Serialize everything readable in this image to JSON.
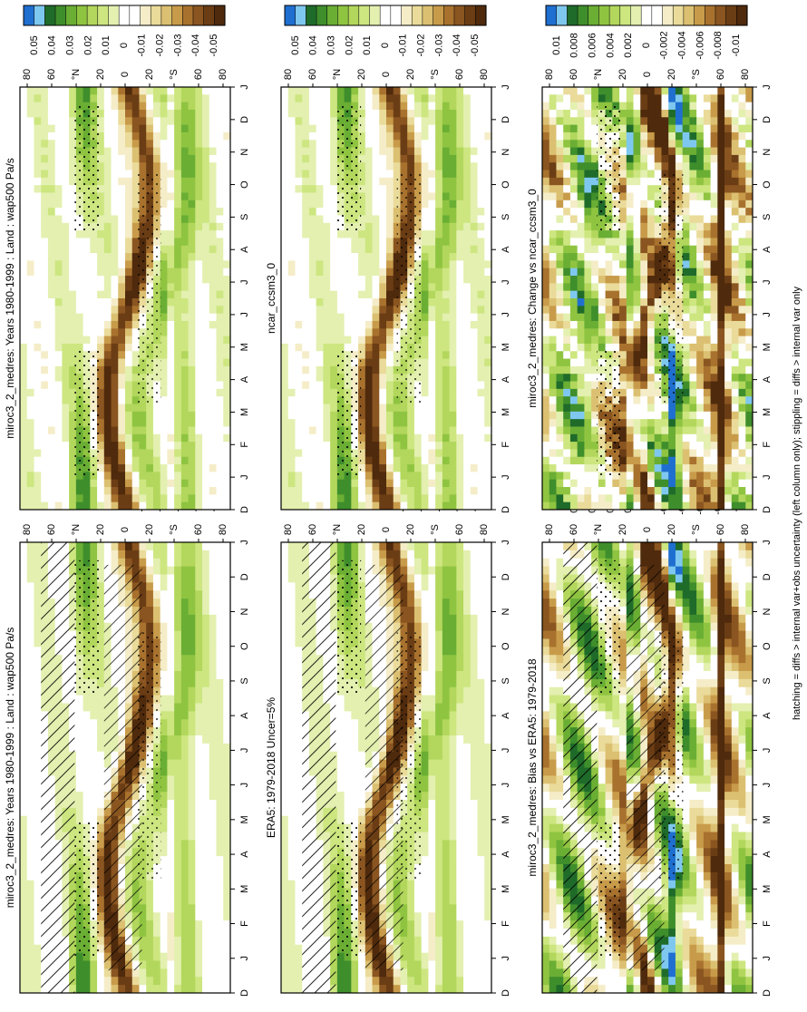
{
  "footnote": "hatching = diffs > internal var+obs uncertainty (left column only); stippling = diffs > internal var only",
  "months": [
    "D",
    "J",
    "F",
    "M",
    "A",
    "M",
    "J",
    "J",
    "A",
    "S",
    "O",
    "N",
    "D",
    "J"
  ],
  "lat_ticks": [
    "80",
    "60",
    "°N",
    "20",
    "0",
    "20",
    "°S",
    "60",
    "80"
  ],
  "palette": [
    "#1f6fd0",
    "#7ec8f0",
    "#1f6b2a",
    "#3f8e2c",
    "#6aae34",
    "#8fc441",
    "#b2d75c",
    "#cde680",
    "#e3f0b0",
    "#ffffff",
    "#ffffff",
    "#f5edc8",
    "#eadb9a",
    "#dcc071",
    "#c89b4a",
    "#a8722e",
    "#8a5520",
    "#6b3d15",
    "#4f2a0c"
  ],
  "colorbar_labels_main": [
    "0.05",
    "0.04",
    "0.03",
    "0.02",
    "0.01",
    "0",
    "-0.01",
    "-0.02",
    "-0.03",
    "-0.04",
    "-0.05"
  ],
  "colorbar_labels_diff": [
    "0.01",
    "0.008",
    "0.006",
    "0.004",
    "0.002",
    "0",
    "-0.002",
    "-0.004",
    "-0.006",
    "-0.008",
    "-0.01"
  ],
  "chart_data": [
    {
      "type": "heatmap",
      "title": "miroc3_2_medres: Years 1980-1999 : Land : wap500 Pa/s",
      "x_ticks": [
        "D",
        "J",
        "F",
        "M",
        "A",
        "M",
        "J",
        "J",
        "A",
        "S",
        "O",
        "N",
        "D",
        "J"
      ],
      "y_ticks": [
        "80",
        "60",
        "°N",
        "20",
        "0",
        "20",
        "°S",
        "60",
        "80"
      ],
      "colorbar": [
        "0.05",
        "0.04",
        "0.03",
        "0.02",
        "0.01",
        "0",
        "-0.01",
        "-0.02",
        "-0.03",
        "-0.04",
        "-0.05"
      ],
      "hatching": true
    },
    {
      "type": "heatmap",
      "title": "miroc3_2_medres: Years 1980-1999 : Land : wap500 Pa/s",
      "x_ticks": [
        "D",
        "J",
        "F",
        "M",
        "A",
        "M",
        "J",
        "J",
        "A",
        "S",
        "O",
        "N",
        "D",
        "J"
      ],
      "y_ticks": [
        "80",
        "60",
        "°N",
        "20",
        "0",
        "20",
        "°S",
        "60",
        "80"
      ],
      "colorbar": [
        "0.05",
        "0.04",
        "0.03",
        "0.02",
        "0.01",
        "0",
        "-0.01",
        "-0.02",
        "-0.03",
        "-0.04",
        "-0.05"
      ],
      "hatching": false
    },
    {
      "type": "heatmap",
      "title": "ERA5: 1979-2018 Uncer=5%",
      "x_ticks": [
        "D",
        "J",
        "F",
        "M",
        "A",
        "M",
        "J",
        "J",
        "A",
        "S",
        "O",
        "N",
        "D",
        "J"
      ],
      "y_ticks": [
        "80",
        "60",
        "°N",
        "20",
        "0",
        "20",
        "°S",
        "60",
        "80"
      ],
      "colorbar": [
        "0.05",
        "0.04",
        "0.03",
        "0.02",
        "0.01",
        "0",
        "-0.01",
        "-0.02",
        "-0.03",
        "-0.04",
        "-0.05"
      ],
      "hatching": true
    },
    {
      "type": "heatmap",
      "title": "ncar_ccsm3_0",
      "x_ticks": [
        "D",
        "J",
        "F",
        "M",
        "A",
        "M",
        "J",
        "J",
        "A",
        "S",
        "O",
        "N",
        "D",
        "J"
      ],
      "y_ticks": [
        "80",
        "60",
        "°N",
        "20",
        "0",
        "20",
        "°S",
        "60",
        "80"
      ],
      "colorbar": [
        "0.05",
        "0.04",
        "0.03",
        "0.02",
        "0.01",
        "0",
        "-0.01",
        "-0.02",
        "-0.03",
        "-0.04",
        "-0.05"
      ],
      "hatching": false
    },
    {
      "type": "heatmap",
      "title": "miroc3_2_medres: Bias vs ERA5: 1979-2018",
      "x_ticks": [
        "D",
        "J",
        "F",
        "M",
        "A",
        "M",
        "J",
        "J",
        "A",
        "S",
        "O",
        "N",
        "D",
        "J"
      ],
      "y_ticks": [
        "80",
        "60",
        "°N",
        "20",
        "0",
        "20",
        "°S",
        "60",
        "80"
      ],
      "colorbar": [
        "0.01",
        "0.008",
        "0.006",
        "0.004",
        "0.002",
        "0",
        "-0.002",
        "-0.004",
        "-0.006",
        "-0.008",
        "-0.01"
      ],
      "hatching": true
    },
    {
      "type": "heatmap",
      "title": "miroc3_2_medres: Change vs ncar_ccsm3_0",
      "x_ticks": [
        "D",
        "J",
        "F",
        "M",
        "A",
        "M",
        "J",
        "J",
        "A",
        "S",
        "O",
        "N",
        "D",
        "J"
      ],
      "y_ticks": [
        "80",
        "60",
        "°N",
        "20",
        "0",
        "20",
        "°S",
        "60",
        "80"
      ],
      "colorbar": [
        "0.01",
        "0.008",
        "0.006",
        "0.004",
        "0.002",
        "0",
        "-0.002",
        "-0.004",
        "-0.006",
        "-0.008",
        "-0.01"
      ],
      "hatching": false
    }
  ]
}
